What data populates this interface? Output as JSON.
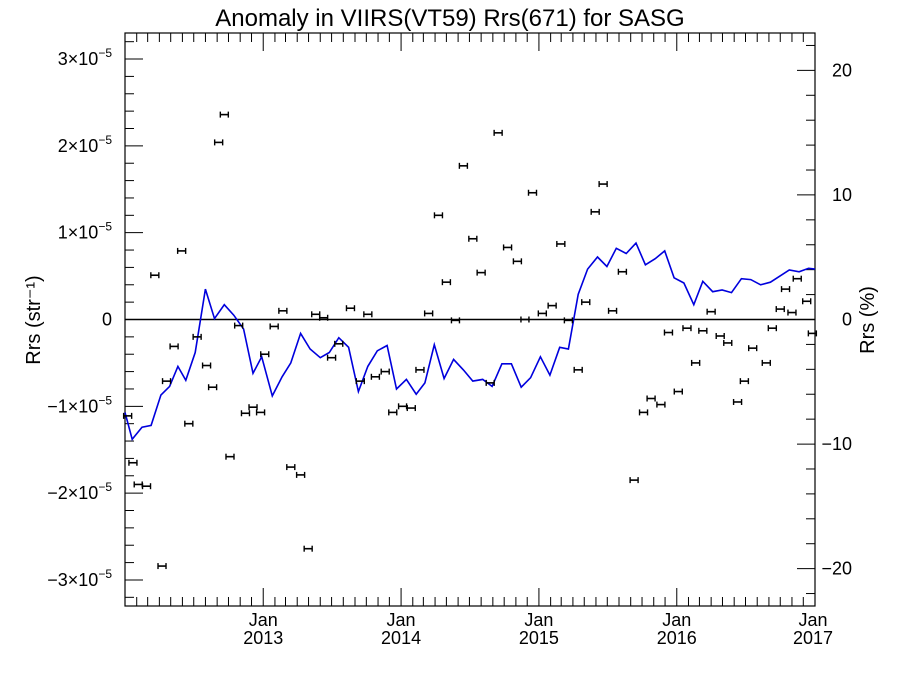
{
  "chart_data": {
    "type": "scatter",
    "title": "Anomaly in VIIRS(VT59) Rrs(671) for SASG",
    "ylabel_left": "Rrs (str⁻¹)",
    "ylabel_right": "Rrs (%)",
    "xlim": [
      "2012-01-01",
      "2017-01-01"
    ],
    "ylim": [
      -3.3e-05,
      3.3e-05
    ],
    "ylim_right": [
      -23,
      23
    ],
    "grid": false,
    "zero_line": true,
    "x_ticks": [
      {
        "month": "Jan",
        "year": "2013",
        "date": "2013-01-01"
      },
      {
        "month": "Jan",
        "year": "2014",
        "date": "2014-01-01"
      },
      {
        "month": "Jan",
        "year": "2015",
        "date": "2015-01-01"
      },
      {
        "month": "Jan",
        "year": "2016",
        "date": "2016-01-01"
      },
      {
        "month": "Jan",
        "year": "2017",
        "date": "2017-01-01"
      }
    ],
    "y_ticks_left": [
      {
        "value": 3e-05,
        "mant": "3",
        "exp": "−5"
      },
      {
        "value": 2e-05,
        "mant": "2",
        "exp": "−5"
      },
      {
        "value": 1e-05,
        "mant": "1",
        "exp": "−5"
      },
      {
        "value": 0,
        "mant": "0",
        "exp": ""
      },
      {
        "value": -1e-05,
        "mant": "−1",
        "exp": "−5"
      },
      {
        "value": -2e-05,
        "mant": "−2",
        "exp": "−5"
      },
      {
        "value": -3e-05,
        "mant": "−3",
        "exp": "−5"
      }
    ],
    "y_ticks_right": [
      {
        "value": 20,
        "label": "20"
      },
      {
        "value": 10,
        "label": "10"
      },
      {
        "value": 0,
        "label": "0"
      },
      {
        "value": -10,
        "label": "−10"
      },
      {
        "value": -20,
        "label": "−20"
      }
    ],
    "colors": {
      "points": "#000000",
      "line": "#0000dd",
      "axes": "#000000"
    },
    "series": [
      {
        "kind": "points",
        "x": [
          "2012-01-08",
          "2012-01-22",
          "2012-02-05",
          "2012-02-27",
          "2012-03-20",
          "2012-04-08",
          "2012-04-20",
          "2012-05-10",
          "2012-05-30",
          "2012-06-18",
          "2012-07-10",
          "2012-08-04",
          "2012-08-20",
          "2012-09-05",
          "2012-09-20",
          "2012-10-05",
          "2012-10-28",
          "2012-11-15",
          "2012-12-05",
          "2012-12-25",
          "2013-01-05",
          "2013-01-30",
          "2013-02-22",
          "2013-03-15",
          "2013-04-10",
          "2013-04-30",
          "2013-05-20",
          "2013-06-10",
          "2013-07-01",
          "2013-07-20",
          "2013-08-20",
          "2013-09-15",
          "2013-10-05",
          "2013-10-25",
          "2013-11-20",
          "2013-12-10",
          "2014-01-05",
          "2014-01-28",
          "2014-02-20",
          "2014-03-15",
          "2014-04-10",
          "2014-05-01",
          "2014-05-25",
          "2014-06-15",
          "2014-07-10",
          "2014-08-01",
          "2014-08-25",
          "2014-09-15",
          "2014-10-10",
          "2014-11-05",
          "2014-11-25",
          "2014-12-15",
          "2015-01-10",
          "2015-02-05",
          "2015-02-28",
          "2015-03-20",
          "2015-04-15",
          "2015-05-05",
          "2015-05-30",
          "2015-06-20",
          "2015-07-15",
          "2015-08-10",
          "2015-09-10",
          "2015-10-05",
          "2015-10-25",
          "2015-11-20",
          "2015-12-10",
          "2016-01-05",
          "2016-01-28",
          "2016-02-20",
          "2016-03-10",
          "2016-04-01",
          "2016-04-25",
          "2016-05-15",
          "2016-06-10",
          "2016-06-28",
          "2016-07-20",
          "2016-08-25",
          "2016-09-10",
          "2016-10-01",
          "2016-10-15",
          "2016-11-01",
          "2016-11-15",
          "2016-12-10",
          "2016-12-25"
        ],
        "y": [
          -1.11e-05,
          -1.65e-05,
          -1.9e-05,
          -1.92e-05,
          5.1e-06,
          -2.84e-05,
          -7.1e-06,
          -3.1e-06,
          7.9e-06,
          -1.2e-05,
          -2e-06,
          -5.3e-06,
          -7.8e-06,
          2.04e-05,
          2.36e-05,
          -1.58e-05,
          -7e-07,
          -1.08e-05,
          -1.01e-05,
          -1.07e-05,
          -4e-06,
          -8e-07,
          1e-06,
          -1.7e-05,
          -1.79e-05,
          -2.64e-05,
          6e-07,
          2e-07,
          -4.4e-06,
          -2.8e-06,
          1.3e-06,
          -7.1e-06,
          6e-07,
          -6.6e-06,
          -6e-06,
          -1.07e-05,
          -1e-05,
          -1.02e-05,
          -5.8e-06,
          7e-07,
          1.2e-05,
          4.3e-06,
          -1e-07,
          1.77e-05,
          9.3e-06,
          5.4e-06,
          -7.3e-06,
          2.15e-05,
          8.3e-06,
          6.7e-06,
          0,
          1.46e-05,
          7e-07,
          1.6e-06,
          8.7e-06,
          -1e-07,
          -5.8e-06,
          2e-06,
          1.24e-05,
          1.56e-05,
          1e-06,
          5.5e-06,
          -1.85e-05,
          -1.07e-05,
          -9.1e-06,
          -9.8e-06,
          -1.5e-06,
          -8.3e-06,
          -1e-06,
          -5e-06,
          -1.3e-06,
          9e-07,
          -1.9e-06,
          -2.7e-06,
          -9.5e-06,
          -7.1e-06,
          -3.3e-06,
          -5e-06,
          -1e-06,
          1.2e-06,
          3.5e-06,
          8e-07,
          4.7e-06,
          2.1e-06,
          -1.6e-06
        ]
      },
      {
        "kind": "line",
        "x": [
          "2012-01-01",
          "2012-01-20",
          "2012-02-15",
          "2012-03-10",
          "2012-04-05",
          "2012-04-28",
          "2012-05-20",
          "2012-06-10",
          "2012-07-05",
          "2012-08-01",
          "2012-08-25",
          "2012-09-20",
          "2012-10-15",
          "2012-11-10",
          "2012-12-05",
          "2012-12-28",
          "2013-01-25",
          "2013-02-20",
          "2013-03-15",
          "2013-04-10",
          "2013-05-05",
          "2013-06-01",
          "2013-06-25",
          "2013-07-20",
          "2013-08-15",
          "2013-09-10",
          "2013-10-05",
          "2013-10-30",
          "2013-11-25",
          "2013-12-20",
          "2014-01-15",
          "2014-02-10",
          "2014-03-05",
          "2014-03-30",
          "2014-04-25",
          "2014-05-20",
          "2014-06-15",
          "2014-07-10",
          "2014-08-05",
          "2014-08-30",
          "2014-09-25",
          "2014-10-20",
          "2014-11-15",
          "2014-12-10",
          "2015-01-05",
          "2015-01-30",
          "2015-02-25",
          "2015-03-20",
          "2015-04-15",
          "2015-05-10",
          "2015-06-05",
          "2015-06-30",
          "2015-07-25",
          "2015-08-20",
          "2015-09-15",
          "2015-10-10",
          "2015-11-05",
          "2015-11-30",
          "2015-12-25",
          "2016-01-20",
          "2016-02-15",
          "2016-03-10",
          "2016-04-05",
          "2016-04-30",
          "2016-05-25",
          "2016-06-20",
          "2016-07-15",
          "2016-08-10",
          "2016-09-05",
          "2016-09-30",
          "2016-10-25",
          "2016-11-20",
          "2016-12-15",
          "2017-01-01"
        ],
        "y": [
          -1.07e-05,
          -1.38e-05,
          -1.24e-05,
          -1.22e-05,
          -8.7e-06,
          -7.7e-06,
          -5.4e-06,
          -7e-06,
          -3.8e-06,
          3.5e-06,
          1e-07,
          1.7e-06,
          5e-07,
          -1.1e-06,
          -6.2e-06,
          -4.3e-06,
          -8.8e-06,
          -6.6e-06,
          -5e-06,
          -1.6e-06,
          -3.4e-06,
          -4.4e-06,
          -3.8e-06,
          -2.1e-06,
          -3.2e-06,
          -8.3e-06,
          -5.4e-06,
          -3.6e-06,
          -3e-06,
          -8e-06,
          -6.9e-06,
          -8.6e-06,
          -7.3e-06,
          -2.9e-06,
          -6.8e-06,
          -4.6e-06,
          -5.8e-06,
          -7.1e-06,
          -6.9e-06,
          -7.7e-06,
          -5.1e-06,
          -5.1e-06,
          -7.8e-06,
          -6.7e-06,
          -4.3e-06,
          -6.4e-06,
          -3.2e-06,
          -3.4e-06,
          2.9e-06,
          5.8e-06,
          7.2e-06,
          6.1e-06,
          8.2e-06,
          7.6e-06,
          8.8e-06,
          6.3e-06,
          7e-06,
          7.9e-06,
          4.8e-06,
          4.2e-06,
          1.7e-06,
          4.4e-06,
          3.2e-06,
          3.4e-06,
          3.1e-06,
          4.7e-06,
          4.6e-06,
          4e-06,
          4.3e-06,
          5e-06,
          5.7e-06,
          5.5e-06,
          5.9e-06,
          5.8e-06
        ]
      }
    ]
  }
}
